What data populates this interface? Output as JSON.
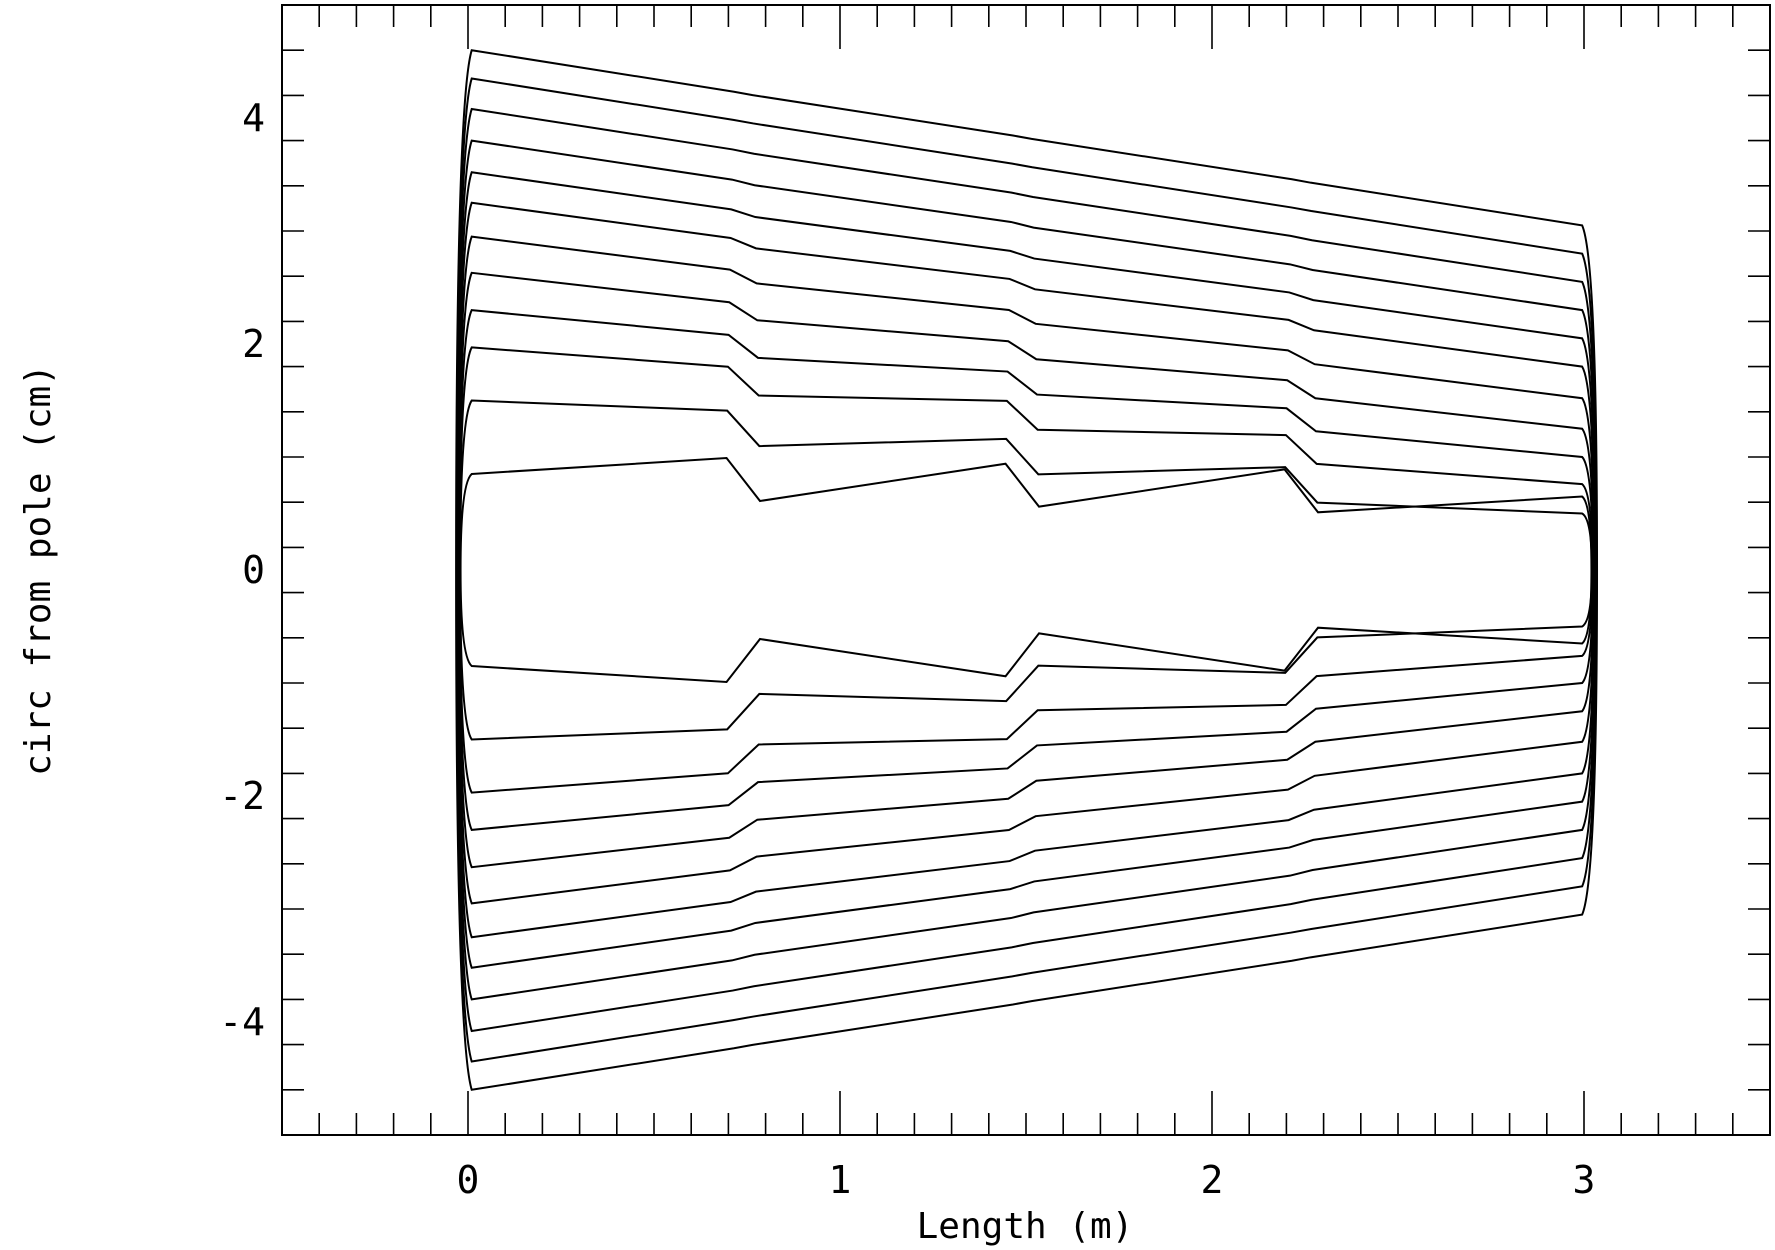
{
  "chart_data": {
    "type": "line",
    "title": "",
    "xlabel": "Length (m)",
    "ylabel": "circ from pole (cm)",
    "xlim": [
      -0.5,
      3.5
    ],
    "ylim": [
      -5,
      5
    ],
    "x_major_ticks": [
      0,
      1,
      2,
      3
    ],
    "x_tick_labels": [
      "0",
      "1",
      "2",
      "3"
    ],
    "x_minor_step": 0.1,
    "y_major_ticks": [
      -4,
      -2,
      0,
      2,
      4
    ],
    "y_tick_labels": [
      "-4",
      "-2",
      "0",
      "2",
      "4"
    ],
    "y_minor_step": 0.4,
    "grid": false,
    "line_color": "#000000",
    "segment_boundaries_m": [
      0.0,
      0.74,
      1.49,
      2.24,
      3.0
    ],
    "series": [
      {
        "y_start": 4.6,
        "y_end": 3.05
      },
      {
        "y_start": 4.35,
        "y_end": 2.8
      },
      {
        "y_start": 4.08,
        "y_end": 2.55
      },
      {
        "y_start": 3.8,
        "y_end": 2.3
      },
      {
        "y_start": 3.52,
        "y_end": 2.05
      },
      {
        "y_start": 3.25,
        "y_end": 1.8
      },
      {
        "y_start": 2.95,
        "y_end": 1.52
      },
      {
        "y_start": 2.63,
        "y_end": 1.25
      },
      {
        "y_start": 2.3,
        "y_end": 1.0
      },
      {
        "y_start": 1.97,
        "y_end": 0.76
      },
      {
        "y_start": 1.5,
        "y_end": 0.5
      },
      {
        "y_start": 0.85,
        "y_end": 0.65
      }
    ]
  }
}
